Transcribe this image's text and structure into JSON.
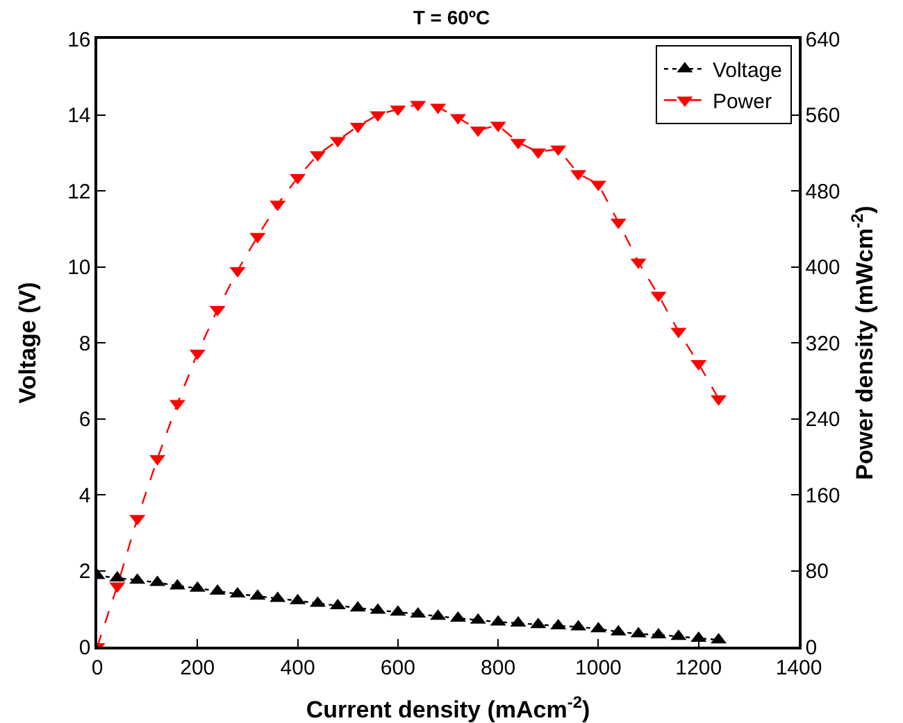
{
  "chart_data": {
    "type": "line",
    "title": "T = 60ºC",
    "xlabel": "Current density (mAcm$^{-2}$)",
    "ylabel": "Voltage (V)",
    "y2label": "Power density (mWcm$^{-2}$)",
    "x": [
      0,
      40,
      80,
      120,
      160,
      200,
      240,
      280,
      320,
      360,
      400,
      440,
      480,
      520,
      560,
      600,
      640,
      680,
      720,
      760,
      800,
      840,
      880,
      920,
      960,
      1000,
      1040,
      1080,
      1120,
      1160,
      1200,
      1240
    ],
    "series": [
      {
        "name": "Voltage",
        "color": "#000000",
        "marker": "triangle",
        "line_style": "dotted",
        "values": [
          1.87,
          1.81,
          1.75,
          1.69,
          1.6,
          1.54,
          1.46,
          1.39,
          1.33,
          1.27,
          1.21,
          1.14,
          1.08,
          1.02,
          0.96,
          0.91,
          0.86,
          0.8,
          0.75,
          0.7,
          0.65,
          0.62,
          0.58,
          0.55,
          0.52,
          0.47,
          0.39,
          0.34,
          0.31,
          0.27,
          0.22,
          0.18
        ]
      },
      {
        "name": "Power",
        "color": "#ff0000",
        "marker": "triangle-down",
        "line_style": "dashed",
        "axis": "y2",
        "values": [
          0,
          64,
          135,
          198,
          256,
          309,
          355,
          396,
          432,
          466,
          494,
          518,
          533,
          548,
          560,
          566,
          571,
          568,
          557,
          544,
          549,
          531,
          521,
          524,
          498,
          487,
          447,
          405,
          370,
          332,
          298,
          261
        ]
      }
    ],
    "xlim": [
      0,
      1400
    ],
    "xticks": [
      0,
      200,
      400,
      600,
      800,
      1000,
      1200,
      1400
    ],
    "ylim": [
      0,
      16
    ],
    "yticks": [
      0,
      2,
      4,
      6,
      8,
      10,
      12,
      14,
      16
    ],
    "y2lim": [
      0,
      640
    ],
    "y2ticks": [
      0,
      80,
      160,
      240,
      320,
      400,
      480,
      560,
      640
    ],
    "grid": false,
    "legend": "top right"
  }
}
